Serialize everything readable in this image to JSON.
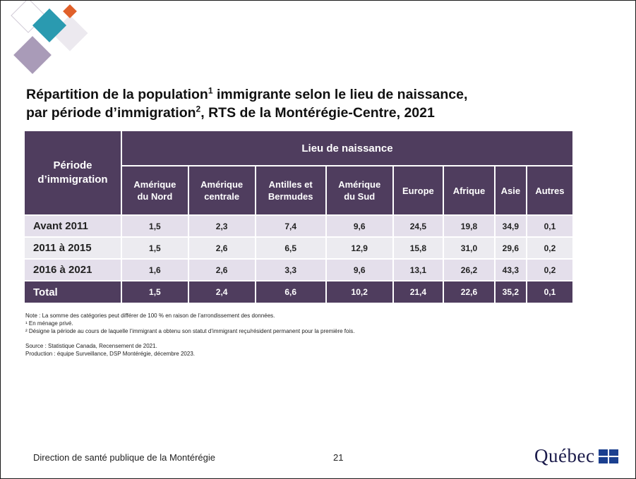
{
  "title": {
    "part1": "Répartition de la population",
    "sup1": "1",
    "part2": " immigrante selon le lieu de naissance,",
    "part3": "par période d’immigration",
    "sup2": "2",
    "part4": ", RTS de la Montérégie-Centre, 2021"
  },
  "table": {
    "period_header_line1": "Période",
    "period_header_line2": "d’immigration",
    "group_header": "Lieu de naissance",
    "columns": [
      [
        "Amérique",
        "du Nord"
      ],
      [
        "Amérique",
        "centrale"
      ],
      [
        "Antilles et",
        "Bermudes"
      ],
      [
        "Amérique",
        "du Sud"
      ],
      [
        "Europe",
        ""
      ],
      [
        "Afrique",
        ""
      ],
      [
        "Asie",
        ""
      ],
      [
        "Autres",
        ""
      ]
    ],
    "rows": [
      {
        "label": "Avant 2011",
        "values": [
          "1,5",
          "2,3",
          "7,4",
          "9,6",
          "24,5",
          "19,8",
          "34,9",
          "0,1"
        ]
      },
      {
        "label": "2011 à 2015",
        "values": [
          "1,5",
          "2,6",
          "6,5",
          "12,9",
          "15,8",
          "31,0",
          "29,6",
          "0,2"
        ]
      },
      {
        "label": "2016 à 2021",
        "values": [
          "1,6",
          "2,6",
          "3,3",
          "9,6",
          "13,1",
          "26,2",
          "43,3",
          "0,2"
        ]
      }
    ],
    "total": {
      "label": "Total",
      "values": [
        "1,5",
        "2,4",
        "6,6",
        "10,2",
        "21,4",
        "22,6",
        "35,2",
        "0,1"
      ]
    }
  },
  "notes": {
    "note": "Note : La somme des catégories peut différer de 100 % en raison de l’arrondissement des données.",
    "fn1": "¹ En ménage privé.",
    "fn2": "² Désigne la période au cours de laquelle l’immigrant a obtenu son statut d’immigrant reçu/résident permanent pour la première fois.",
    "source": "Source : Statistique Canada, Recensement de 2021.",
    "production": "Production : équipe Surveillance, DSP Montérégie, décembre 2023."
  },
  "footer": {
    "org": "Direction de santé publique de la Montérégie",
    "page": "21",
    "logo_text": "Québec"
  },
  "colors": {
    "header_bg": "#4f3d5e",
    "row_light": "#e4dfeb",
    "row_alt": "#ecebf0",
    "deco_teal": "#2a9ab0",
    "deco_orange": "#e0602a",
    "deco_purple": "#a99bb8"
  }
}
